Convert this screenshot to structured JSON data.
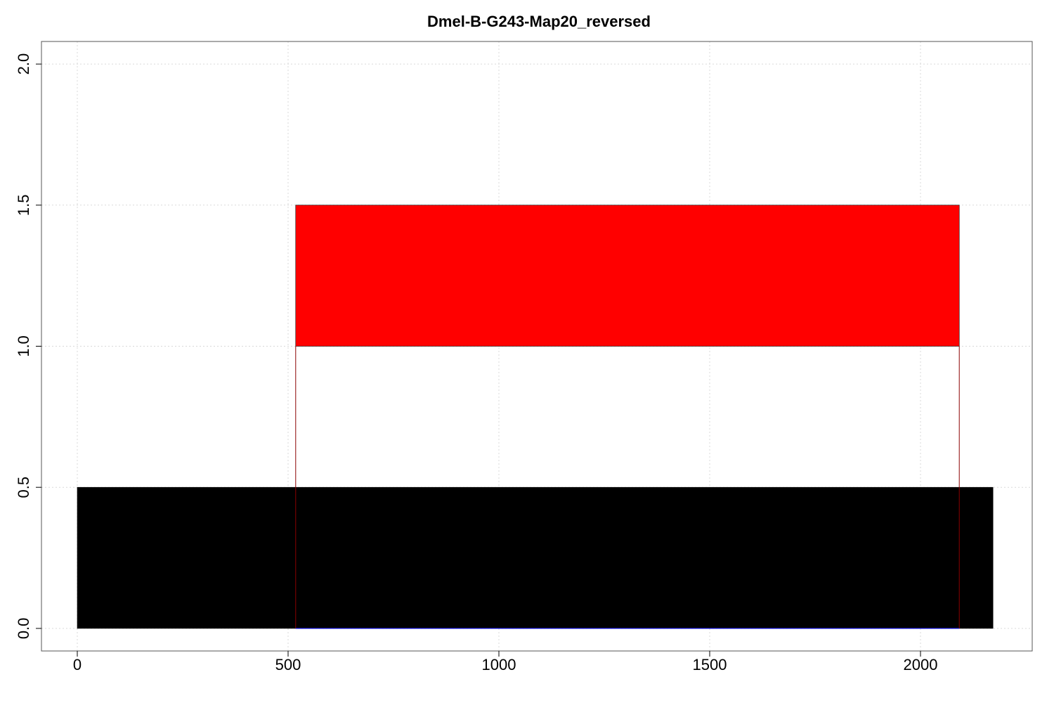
{
  "chart_data": {
    "type": "bar",
    "title": "Dmel-B-G243-Map20_reversed",
    "xlabel": "",
    "ylabel": "",
    "xlim": [
      -85,
      2265
    ],
    "ylim": [
      -0.08,
      2.08
    ],
    "x_ticks": [
      0,
      500,
      1000,
      1500,
      2000
    ],
    "x_tick_labels": [
      "0",
      "500",
      "1000",
      "1500",
      "2000"
    ],
    "y_ticks": [
      0,
      0.5,
      1,
      1.5,
      2
    ],
    "y_tick_labels": [
      "0.0",
      "0.5",
      "1.0",
      "1.5",
      "2.0"
    ],
    "grid": true,
    "legend": "none",
    "segments": [
      {
        "x_start": 0,
        "x_end": 2172,
        "y_bottom": 0,
        "y_top": 0.5,
        "color": "#000000"
      },
      {
        "x_start": 518,
        "x_end": 2092,
        "y_bottom": 1,
        "y_top": 1.5,
        "color": "#ff0000"
      }
    ],
    "connector": {
      "x_start": 518,
      "x_end": 2092,
      "y_bottom": 0,
      "y_top": 1,
      "color": "#8b0000"
    },
    "baseline": {
      "x_start": 518,
      "x_end": 2092,
      "y": 0,
      "color": "#0000ff"
    }
  }
}
